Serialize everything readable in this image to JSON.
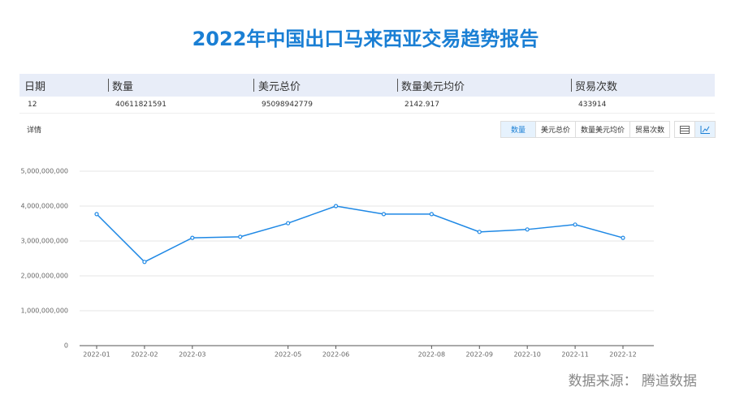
{
  "chart_data": {
    "type": "line",
    "title": "2022年中国出口马来西亚交易趋势报告",
    "categories": [
      "2022-01",
      "2022-02",
      "2022-03",
      null,
      "2022-05",
      "2022-06",
      null,
      "2022-08",
      "2022-09",
      "2022-10",
      "2022-11",
      "2022-12"
    ],
    "values": [
      3770000000,
      2400000000,
      3090000000,
      3120000000,
      3510000000,
      4000000000,
      3770000000,
      3770000000,
      3260000000,
      3330000000,
      3470000000,
      3090000000
    ],
    "color": "#1e88e5",
    "ylim": [
      0,
      5000000000
    ],
    "yticks": [
      0,
      {
        "value": 1000000000,
        "label": "1,000,000,000"
      },
      {
        "value": 2000000000,
        "label": "2,000,000,000"
      },
      {
        "value": 3000000000,
        "label": "3,000,000,000"
      },
      {
        "value": 4000000000,
        "label": "4,000,000,000"
      },
      {
        "value": 5000000000,
        "label": "5,000,000,000"
      }
    ],
    "grid": true
  },
  "summary": {
    "headers": [
      "日期",
      "数量",
      "美元总价",
      "数量美元均价",
      "贸易次数"
    ],
    "rows": [
      [
        12,
        40611821591,
        95098942779,
        2142.917,
        433914
      ]
    ]
  },
  "detail_label": "详情",
  "tabs": [
    "数量",
    "美元总价",
    "数量美元均价",
    "贸易次数"
  ],
  "source": "数据来源： 腾道数据"
}
